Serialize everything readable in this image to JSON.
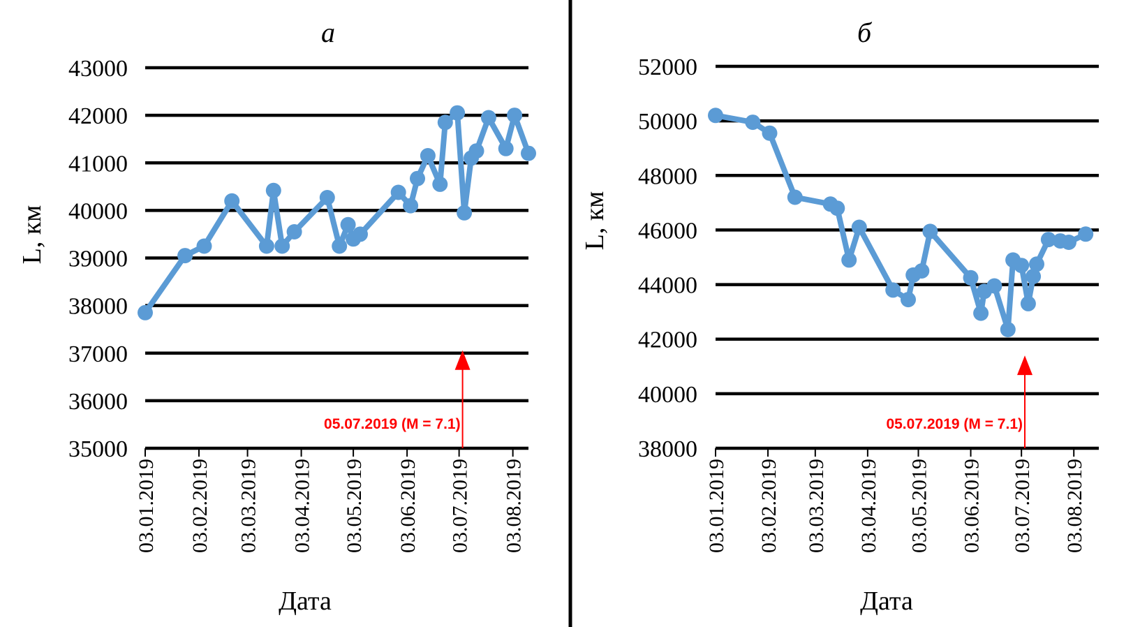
{
  "colors": {
    "series": "#5b9bd5",
    "grid": "#000000",
    "annotation": "#ff0000",
    "divider": "#000000"
  },
  "chart_data": [
    {
      "type": "line",
      "panel_label": "а",
      "xlabel": "Дата",
      "ylabel": "L, км",
      "ylim": [
        35000,
        43000
      ],
      "yticks": [
        "35000",
        "36000",
        "37000",
        "38000",
        "39000",
        "40000",
        "41000",
        "42000",
        "43000"
      ],
      "xlim": [
        "2019-01-03",
        "2019-08-12"
      ],
      "xticks": [
        {
          "date": "2019-01-03",
          "label": "03.01.2019"
        },
        {
          "date": "2019-02-03",
          "label": "03.02.2019"
        },
        {
          "date": "2019-03-03",
          "label": "03.03.2019"
        },
        {
          "date": "2019-04-03",
          "label": "03.04.2019"
        },
        {
          "date": "2019-05-03",
          "label": "03.05.2019"
        },
        {
          "date": "2019-06-03",
          "label": "03.06.2019"
        },
        {
          "date": "2019-07-03",
          "label": "03.07.2019"
        },
        {
          "date": "2019-08-03",
          "label": "03.08.2019"
        }
      ],
      "grid": true,
      "annotation": {
        "text": "05.07.2019 (M = 7.1)",
        "date": "2019-07-05",
        "value": 37000
      },
      "series": [
        {
          "x": [
            "2019-01-03",
            "2019-01-26",
            "2019-02-06",
            "2019-02-22",
            "2019-03-14",
            "2019-03-18",
            "2019-03-23",
            "2019-03-30",
            "2019-04-18",
            "2019-04-25",
            "2019-04-30",
            "2019-05-03",
            "2019-05-07",
            "2019-05-29",
            "2019-06-05",
            "2019-06-09",
            "2019-06-15",
            "2019-06-22",
            "2019-06-25",
            "2019-07-02",
            "2019-07-06",
            "2019-07-10",
            "2019-07-13",
            "2019-07-20",
            "2019-07-30",
            "2019-08-04",
            "2019-08-12"
          ],
          "values": [
            37850,
            39050,
            39250,
            40200,
            39250,
            40420,
            39250,
            39550,
            40270,
            39250,
            39700,
            39400,
            39500,
            40380,
            40100,
            40670,
            41150,
            40550,
            41850,
            42050,
            39950,
            41100,
            41250,
            41950,
            41300,
            42000,
            41200
          ]
        }
      ]
    },
    {
      "type": "line",
      "panel_label": "б",
      "xlabel": "Дата",
      "ylabel": "L, км",
      "ylim": [
        38000,
        52000
      ],
      "yticks": [
        "38000",
        "40000",
        "42000",
        "44000",
        "46000",
        "48000",
        "50000",
        "52000"
      ],
      "xlim": [
        "2019-01-03",
        "2019-08-12"
      ],
      "xticks": [
        {
          "date": "2019-01-03",
          "label": "03.01.2019"
        },
        {
          "date": "2019-02-03",
          "label": "03.02.2019"
        },
        {
          "date": "2019-03-03",
          "label": "03.03.2019"
        },
        {
          "date": "2019-04-03",
          "label": "03.04.2019"
        },
        {
          "date": "2019-05-03",
          "label": "03.05.2019"
        },
        {
          "date": "2019-06-03",
          "label": "03.06.2019"
        },
        {
          "date": "2019-07-03",
          "label": "03.07.2019"
        },
        {
          "date": "2019-08-03",
          "label": "03.08.2019"
        }
      ],
      "grid": true,
      "annotation": {
        "text": "05.07.2019 (M = 7.1)",
        "date": "2019-07-05",
        "value": 41300
      },
      "series": [
        {
          "x": [
            "2019-01-03",
            "2019-01-25",
            "2019-02-04",
            "2019-02-19",
            "2019-03-12",
            "2019-03-16",
            "2019-03-23",
            "2019-03-29",
            "2019-04-18",
            "2019-04-27",
            "2019-04-30",
            "2019-05-05",
            "2019-05-10",
            "2019-06-03",
            "2019-06-09",
            "2019-06-11",
            "2019-06-17",
            "2019-06-25",
            "2019-06-28",
            "2019-07-03",
            "2019-07-07",
            "2019-07-10",
            "2019-07-12",
            "2019-07-19",
            "2019-07-26",
            "2019-07-31",
            "2019-08-10"
          ],
          "values": [
            50200,
            49950,
            49550,
            47200,
            46950,
            46800,
            44900,
            46100,
            43800,
            43450,
            44350,
            44500,
            45950,
            44250,
            42950,
            43750,
            43950,
            42350,
            44900,
            44700,
            43300,
            44300,
            44750,
            45650,
            45600,
            45550,
            45850
          ]
        }
      ]
    }
  ]
}
